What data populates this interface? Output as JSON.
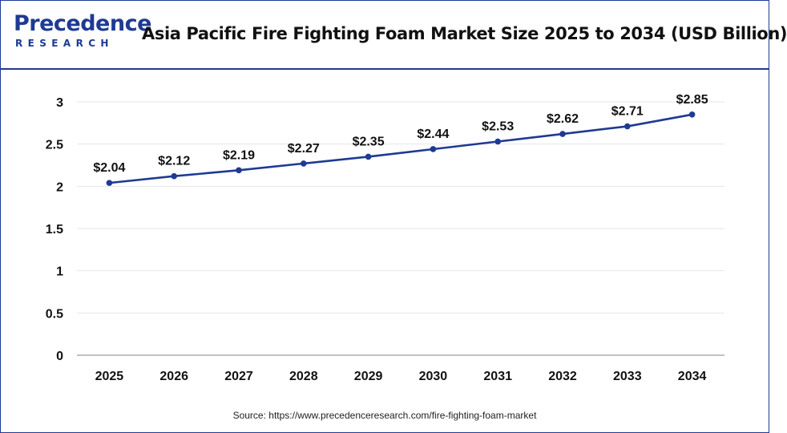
{
  "header": {
    "logo_top": "Precedence",
    "logo_bottom": "RESEARCH",
    "title": "Asia Pacific Fire Fighting Foam Market Size 2025 to 2034 (USD Billion)"
  },
  "chart_data": {
    "type": "line",
    "title": "Asia Pacific Fire Fighting Foam Market Size 2025 to 2034 (USD Billion)",
    "xlabel": "",
    "ylabel": "",
    "categories": [
      "2025",
      "2026",
      "2027",
      "2028",
      "2029",
      "2030",
      "2031",
      "2032",
      "2033",
      "2034"
    ],
    "values": [
      2.04,
      2.12,
      2.19,
      2.27,
      2.35,
      2.44,
      2.53,
      2.62,
      2.71,
      2.85
    ],
    "data_labels": [
      "$2.04",
      "$2.12",
      "$2.19",
      "$2.27",
      "$2.35",
      "$2.44",
      "$2.53",
      "$2.62",
      "$2.71",
      "$2.85"
    ],
    "ylim": [
      0,
      3
    ],
    "yticks": [
      0,
      0.5,
      1,
      1.5,
      2,
      2.5,
      3
    ],
    "ytick_labels": [
      "0",
      "0.5",
      "1",
      "1.5",
      "2",
      "2.5",
      "3"
    ],
    "grid": true,
    "legend": "none",
    "line_color": "#1f3a93",
    "grid_color": "#e6e6e6"
  },
  "footer": {
    "source": "Source: https://www.precedenceresearch.com/fire-fighting-foam-market"
  }
}
